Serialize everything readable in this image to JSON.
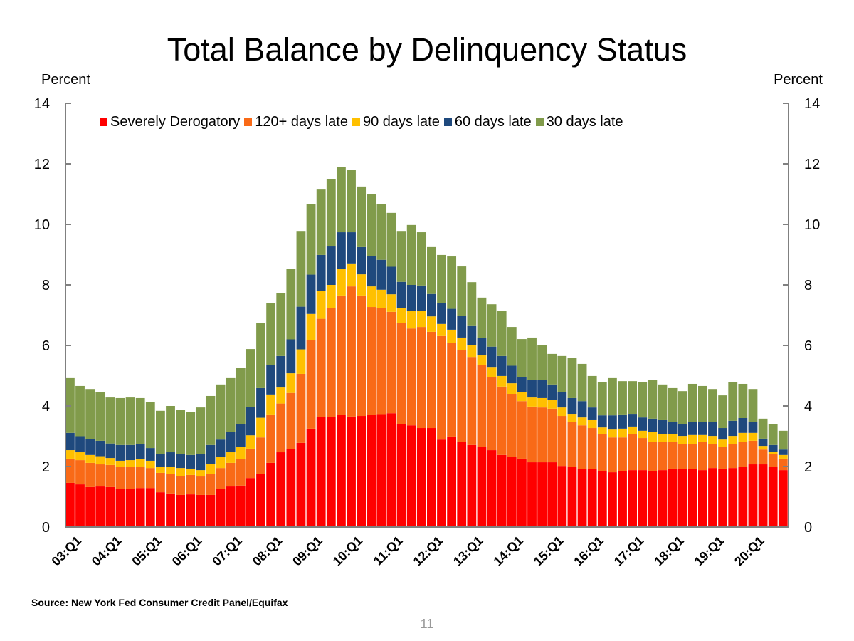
{
  "chart_data": {
    "type": "bar",
    "stacked": true,
    "title": "Total Balance by Delinquency Status",
    "ylabel_left": "Percent",
    "ylabel_right": "Percent",
    "ylim": [
      0,
      14
    ],
    "yticks": [
      0,
      2,
      4,
      6,
      8,
      10,
      12,
      14
    ],
    "x_tick_labels": [
      "03:Q1",
      "04:Q1",
      "05:Q1",
      "06:Q1",
      "07:Q1",
      "08:Q1",
      "09:Q1",
      "10:Q1",
      "11:Q1",
      "12:Q1",
      "13:Q1",
      "14:Q1",
      "15:Q1",
      "16:Q1",
      "17:Q1",
      "18:Q1",
      "19:Q1",
      "20:Q1"
    ],
    "bars_per_tick": 4,
    "legend_placement": "top",
    "grid": false,
    "series": [
      {
        "name": "Severely Derogatory",
        "color": "#FF0000",
        "values": [
          1.46,
          1.41,
          1.32,
          1.34,
          1.32,
          1.27,
          1.27,
          1.29,
          1.29,
          1.15,
          1.11,
          1.06,
          1.08,
          1.06,
          1.06,
          1.25,
          1.34,
          1.37,
          1.62,
          1.76,
          2.12,
          2.47,
          2.57,
          2.78,
          3.25,
          3.63,
          3.63,
          3.7,
          3.65,
          3.67,
          3.7,
          3.73,
          3.76,
          3.41,
          3.36,
          3.27,
          3.27,
          2.89,
          2.99,
          2.8,
          2.71,
          2.64,
          2.54,
          2.38,
          2.31,
          2.26,
          2.14,
          2.14,
          2.14,
          2.02,
          2.0,
          1.91,
          1.91,
          1.84,
          1.81,
          1.84,
          1.88,
          1.88,
          1.84,
          1.88,
          1.93,
          1.91,
          1.91,
          1.88,
          1.95,
          1.93,
          1.95,
          2.0,
          2.07,
          2.07,
          1.98,
          1.88
        ]
      },
      {
        "name": "120+ days late",
        "color": "#F96A17",
        "values": [
          0.8,
          0.8,
          0.8,
          0.73,
          0.73,
          0.71,
          0.71,
          0.71,
          0.66,
          0.64,
          0.65,
          0.63,
          0.64,
          0.61,
          0.7,
          0.7,
          0.78,
          0.87,
          0.97,
          1.2,
          1.6,
          1.61,
          1.86,
          2.28,
          2.92,
          3.25,
          3.6,
          3.95,
          4.3,
          3.98,
          3.57,
          3.5,
          3.35,
          3.32,
          3.2,
          3.34,
          3.18,
          3.42,
          3.1,
          3.04,
          2.91,
          2.72,
          2.42,
          2.26,
          2.09,
          1.9,
          1.84,
          1.81,
          1.77,
          1.65,
          1.46,
          1.45,
          1.36,
          1.22,
          1.15,
          1.12,
          1.18,
          1.06,
          0.98,
          0.92,
          0.87,
          0.84,
          0.84,
          0.92,
          0.8,
          0.71,
          0.78,
          0.82,
          0.78,
          0.49,
          0.42,
          0.38
        ]
      },
      {
        "name": "90 days late",
        "color": "#FFC000",
        "values": [
          0.28,
          0.26,
          0.26,
          0.27,
          0.23,
          0.21,
          0.23,
          0.24,
          0.24,
          0.21,
          0.24,
          0.26,
          0.21,
          0.21,
          0.33,
          0.36,
          0.35,
          0.4,
          0.44,
          0.65,
          0.66,
          0.53,
          0.65,
          0.81,
          0.87,
          0.91,
          0.77,
          0.89,
          0.76,
          0.7,
          0.68,
          0.61,
          0.58,
          0.5,
          0.58,
          0.53,
          0.51,
          0.4,
          0.43,
          0.42,
          0.4,
          0.31,
          0.33,
          0.35,
          0.35,
          0.29,
          0.3,
          0.31,
          0.3,
          0.28,
          0.28,
          0.26,
          0.26,
          0.23,
          0.26,
          0.29,
          0.26,
          0.24,
          0.31,
          0.26,
          0.26,
          0.26,
          0.29,
          0.24,
          0.26,
          0.25,
          0.28,
          0.29,
          0.26,
          0.12,
          0.09,
          0.12
        ]
      },
      {
        "name": "60 days late",
        "color": "#1F497D",
        "values": [
          0.57,
          0.53,
          0.52,
          0.51,
          0.48,
          0.52,
          0.5,
          0.51,
          0.42,
          0.4,
          0.47,
          0.47,
          0.45,
          0.54,
          0.62,
          0.58,
          0.66,
          0.75,
          0.93,
          0.98,
          0.97,
          1.04,
          1.12,
          1.41,
          1.3,
          1.2,
          1.27,
          1.2,
          1.03,
          0.9,
          1.0,
          0.99,
          0.91,
          0.87,
          0.86,
          0.84,
          0.74,
          0.69,
          0.69,
          0.71,
          0.62,
          0.57,
          0.67,
          0.66,
          0.58,
          0.51,
          0.57,
          0.59,
          0.5,
          0.5,
          0.52,
          0.54,
          0.42,
          0.4,
          0.47,
          0.47,
          0.42,
          0.44,
          0.45,
          0.47,
          0.42,
          0.4,
          0.44,
          0.44,
          0.45,
          0.38,
          0.5,
          0.49,
          0.37,
          0.24,
          0.22,
          0.18
        ]
      },
      {
        "name": "30 days late",
        "color": "#819B4B",
        "values": [
          1.81,
          1.66,
          1.66,
          1.62,
          1.52,
          1.55,
          1.57,
          1.51,
          1.51,
          1.44,
          1.53,
          1.44,
          1.43,
          1.53,
          1.62,
          1.82,
          1.79,
          1.88,
          1.92,
          2.14,
          2.06,
          2.07,
          2.33,
          2.48,
          2.33,
          2.16,
          2.23,
          2.16,
          2.07,
          2.0,
          2.04,
          1.85,
          1.78,
          1.66,
          1.98,
          1.76,
          1.55,
          1.59,
          1.73,
          1.64,
          1.45,
          1.34,
          1.4,
          1.48,
          1.28,
          1.25,
          1.41,
          1.15,
          1.01,
          1.2,
          1.32,
          1.23,
          1.04,
          1.09,
          1.23,
          1.1,
          1.08,
          1.16,
          1.27,
          1.18,
          1.11,
          1.08,
          1.25,
          1.18,
          1.1,
          1.08,
          1.27,
          1.13,
          1.08,
          0.66,
          0.68,
          0.62
        ]
      }
    ]
  },
  "source": "Source: New York Fed Consumer Credit Panel/Equifax",
  "page_number": "11"
}
